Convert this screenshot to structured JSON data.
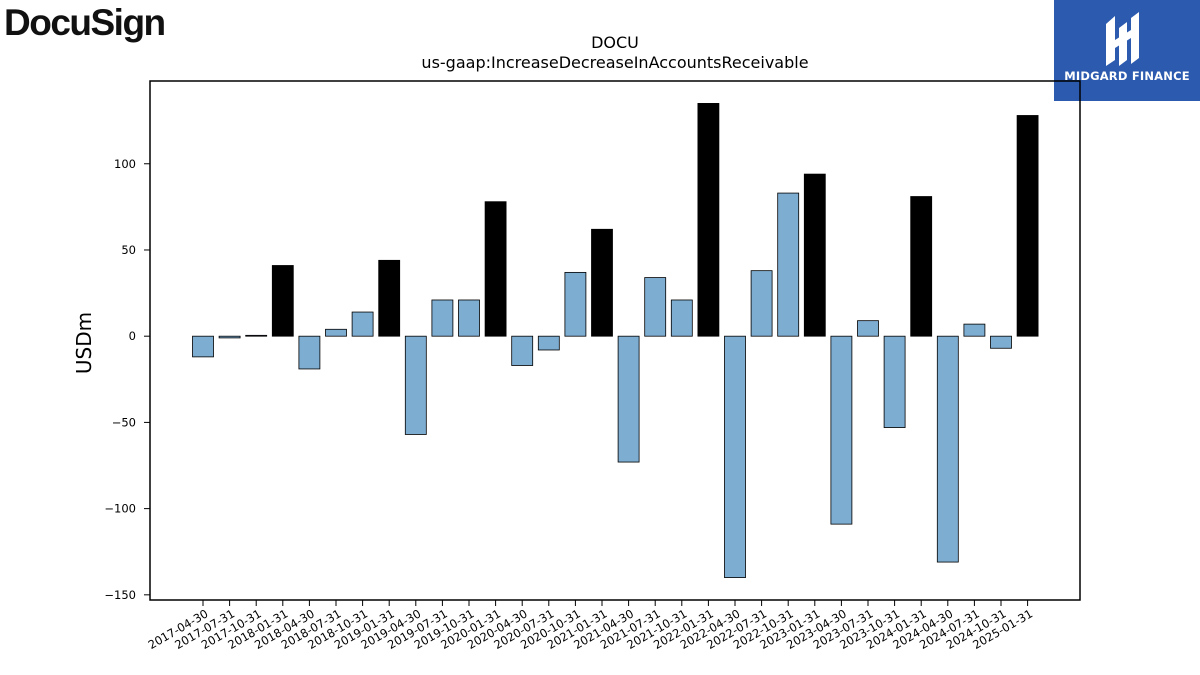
{
  "brand": {
    "name": "DocuSign"
  },
  "badge": {
    "text": "MIDGARD FINANCE"
  },
  "colors": {
    "positive_normal": "#7eadd2",
    "q4_highlight": "#000000",
    "edge": "#000000",
    "badge_bg": "#2b5aae"
  },
  "chart_data": {
    "type": "bar",
    "title": "DOCU",
    "subtitle": "us-gaap:IncreaseDecreaseInAccountsReceivable",
    "ylabel": "USDm",
    "xlabel": "",
    "ylim": [
      -153,
      148
    ],
    "yticks": [
      -150,
      -100,
      -50,
      0,
      50,
      100
    ],
    "grid": false,
    "categories": [
      "2017-04-30",
      "2017-07-31",
      "2017-10-31",
      "2018-01-31",
      "2018-04-30",
      "2018-07-31",
      "2018-10-31",
      "2019-01-31",
      "2019-04-30",
      "2019-07-31",
      "2019-10-31",
      "2020-01-31",
      "2020-04-30",
      "2020-07-31",
      "2020-10-31",
      "2021-01-31",
      "2021-04-30",
      "2021-07-31",
      "2021-10-31",
      "2022-01-31",
      "2022-04-30",
      "2022-07-31",
      "2022-10-31",
      "2023-01-31",
      "2023-04-30",
      "2023-07-31",
      "2023-10-31",
      "2024-01-31",
      "2024-04-30",
      "2024-07-31",
      "2024-10-31",
      "2025-01-31"
    ],
    "values": [
      -12,
      -1,
      0.5,
      41,
      -19,
      4,
      14,
      44,
      -57,
      21,
      21,
      78,
      -17,
      -8,
      37,
      62,
      -73,
      34,
      21,
      135,
      -140,
      38,
      83,
      94,
      -109,
      9,
      -53,
      81,
      -131,
      7,
      -7,
      128
    ],
    "highlight_color_note": "fiscal year-end (January) bars drawn in black; other quarters in light blue"
  }
}
